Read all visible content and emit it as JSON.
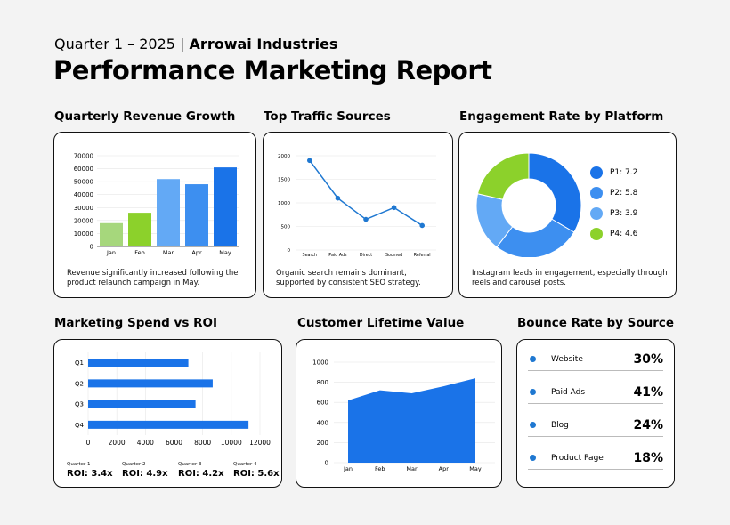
{
  "header": {
    "subtitle_prefix": "Quarter 1 – 2025 |",
    "company": "Arrowai Industries",
    "title": "Performance Marketing Report"
  },
  "colors": {
    "blue_dark": "#1a73e8",
    "blue_mid": "#3d8ff0",
    "blue_light": "#63a9f5",
    "green_light": "#a6d77c",
    "green": "#8cd12b"
  },
  "sections": {
    "revenue": {
      "title": "Quarterly Revenue Growth",
      "caption": "Revenue significantly increased following the product relaunch campaign in May."
    },
    "traffic": {
      "title": "Top Traffic Sources",
      "caption": "Organic search remains dominant, supported by consistent SEO strategy."
    },
    "engagement": {
      "title": "Engagement Rate by Platform",
      "caption": "Instagram leads in engagement, especially through reels and carousel posts."
    },
    "spend": {
      "title": "Marketing Spend vs ROI",
      "roi": [
        {
          "quarter": "Quarter 1",
          "value": "ROI: 3.4x"
        },
        {
          "quarter": "Quarter 2",
          "value": "ROI: 4.9x"
        },
        {
          "quarter": "Quarter 3",
          "value": "ROI: 4.2x"
        },
        {
          "quarter": "Quarter 4",
          "value": "ROI: 5.6x"
        }
      ]
    },
    "clv": {
      "title": "Customer Lifetime Value"
    },
    "bounce": {
      "title": "Bounce Rate by Source",
      "rows": [
        {
          "name": "Website",
          "value": "30%"
        },
        {
          "name": "Paid Ads",
          "value": "41%"
        },
        {
          "name": "Blog",
          "value": "24%"
        },
        {
          "name": "Product Page",
          "value": "18%"
        }
      ]
    }
  },
  "chart_data": [
    {
      "type": "bar",
      "categories": [
        "Jan",
        "Feb",
        "Mar",
        "Apr",
        "May"
      ],
      "values": [
        18000,
        26000,
        52000,
        48000,
        61000
      ],
      "colors": [
        "#a6d77c",
        "#8cd12b",
        "#63a9f5",
        "#3d8ff0",
        "#1a73e8"
      ],
      "yticks": [
        0,
        10000,
        20000,
        30000,
        40000,
        50000,
        60000,
        70000
      ],
      "ylim": [
        0,
        70000
      ]
    },
    {
      "type": "line",
      "categories": [
        "Search",
        "Paid Ads",
        "Direct",
        "Socmed",
        "Referral"
      ],
      "values": [
        1900,
        1100,
        650,
        900,
        520
      ],
      "yticks": [
        0,
        500,
        1000,
        1500,
        2000
      ],
      "ylim": [
        0,
        2000
      ]
    },
    {
      "type": "pie",
      "labels": [
        "P1: 7.2",
        "P2: 5.8",
        "P3: 3.9",
        "P4: 4.6"
      ],
      "values": [
        7.2,
        5.8,
        3.9,
        4.6
      ],
      "colors": [
        "#1a73e8",
        "#3d8ff0",
        "#63a9f5",
        "#8cd12b"
      ]
    },
    {
      "type": "bar",
      "orientation": "horizontal",
      "categories": [
        "Q1",
        "Q2",
        "Q3",
        "Q4"
      ],
      "values": [
        7000,
        8700,
        7500,
        11200
      ],
      "xticks": [
        0,
        2000,
        4000,
        6000,
        8000,
        10000,
        12000
      ],
      "xlim": [
        0,
        12000
      ]
    },
    {
      "type": "area",
      "categories": [
        "Jan",
        "Feb",
        "Mar",
        "Apr",
        "May"
      ],
      "values": [
        620,
        720,
        690,
        760,
        840
      ],
      "yticks": [
        0,
        200,
        400,
        600,
        800,
        1000
      ],
      "ylim": [
        0,
        1000
      ]
    }
  ]
}
